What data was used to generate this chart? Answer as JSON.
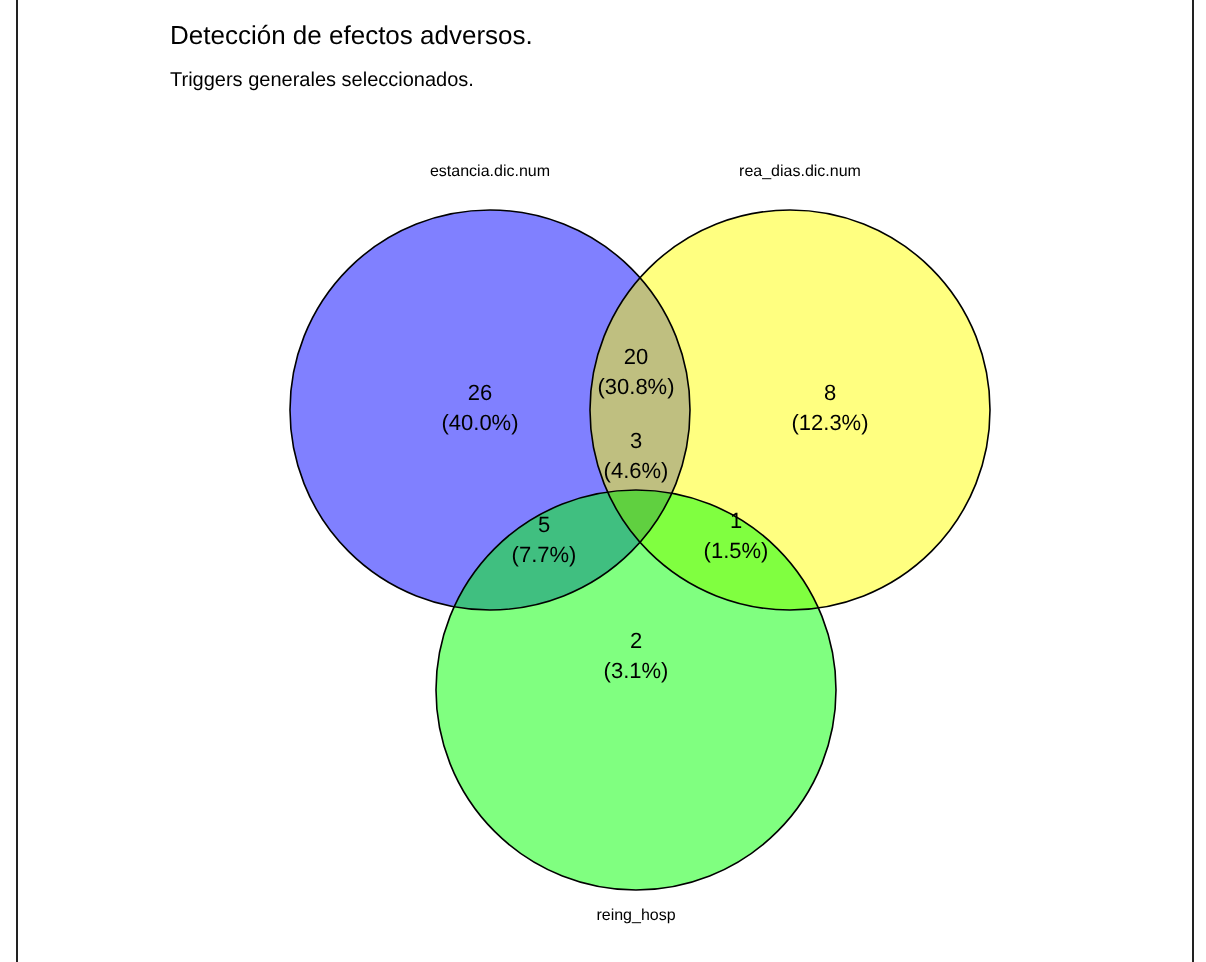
{
  "chart_data": {
    "type": "other",
    "title": "Detección de efectos adversos.",
    "subtitle": "Triggers generales seleccionados.",
    "annotations": [
      "estancia.dic.num",
      "rea_dias.dic.num",
      "reing_hosp"
    ],
    "categories": [
      "26",
      "20",
      "8",
      "5",
      "3",
      "1",
      "2"
    ],
    "values": [
      40.0,
      30.8,
      12.3,
      7.7,
      4.6,
      1.5,
      3.1
    ],
    "value_labels": [
      "(40.0%)",
      "(30.8%)",
      "(12.3%)",
      "(7.7%)",
      "(4.6%)",
      "(1.5%)",
      "(3.1%)"
    ],
    "colors": [
      "#8080ff",
      "#bfbf80",
      "#ffff80",
      "#40bf80",
      "#60d040",
      "#80ff40",
      "#80ff80"
    ]
  }
}
